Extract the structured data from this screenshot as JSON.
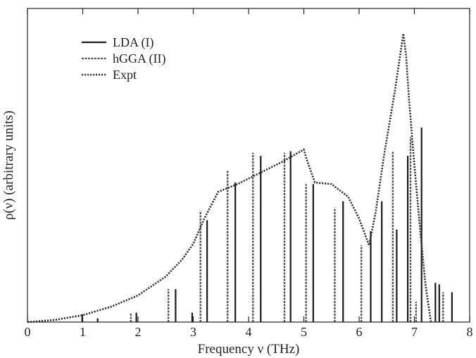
{
  "chart_data": {
    "type": "bar",
    "xlabel": "Frequency ν (THz)",
    "ylabel": "ρ(ν) (arbitrary units)",
    "xlim": [
      0,
      8
    ],
    "ylim": [
      0,
      1.0
    ],
    "xticks": [
      0,
      1,
      2,
      3,
      4,
      5,
      6,
      7,
      8
    ],
    "legend_position": "top-left",
    "series": [
      {
        "name": "LDA (I)",
        "style": "solid",
        "color": "#1a1a1a",
        "x": [
          0.99,
          1.27,
          1.97,
          2.68,
          2.98,
          3.25,
          3.76,
          4.22,
          4.76,
          5.17,
          5.71,
          6.21,
          6.41,
          6.68,
          6.88,
          7.13,
          7.38,
          7.45,
          7.68
        ],
        "y": [
          0.025,
          0.012,
          0.03,
          0.105,
          0.03,
          0.325,
          0.445,
          0.53,
          0.545,
          0.44,
          0.385,
          0.29,
          0.385,
          0.295,
          0.53,
          0.62,
          0.125,
          0.12,
          0.095
        ]
      },
      {
        "name": "hGGA (II)",
        "style": "dashed",
        "color": "#555555",
        "x": [
          1.87,
          2.55,
          3.13,
          3.62,
          4.08,
          4.65,
          5.04,
          5.56,
          6.04,
          6.61,
          6.93,
          7.03,
          7.52
        ],
        "y": [
          0.03,
          0.105,
          0.355,
          0.485,
          0.54,
          0.54,
          0.44,
          0.365,
          0.245,
          0.545,
          0.59,
          0.065,
          0.095
        ]
      },
      {
        "name": "Expt",
        "style": "dotted",
        "color": "#333333",
        "type": "line",
        "x": [
          0,
          0.5,
          1.0,
          1.5,
          2.0,
          2.5,
          2.8,
          3.0,
          3.2,
          3.45,
          3.8,
          4.2,
          4.6,
          5.0,
          5.05,
          5.2,
          5.5,
          5.8,
          6.0,
          6.18,
          6.3,
          6.45,
          6.65,
          6.8,
          6.85,
          6.9,
          7.0,
          7.1,
          7.2,
          7.3
        ],
        "y": [
          0.0,
          0.007,
          0.022,
          0.048,
          0.085,
          0.145,
          0.2,
          0.25,
          0.33,
          0.415,
          0.44,
          0.475,
          0.51,
          0.55,
          0.52,
          0.445,
          0.44,
          0.4,
          0.33,
          0.245,
          0.35,
          0.53,
          0.74,
          0.92,
          0.85,
          0.72,
          0.5,
          0.3,
          0.12,
          0.0
        ]
      }
    ]
  }
}
